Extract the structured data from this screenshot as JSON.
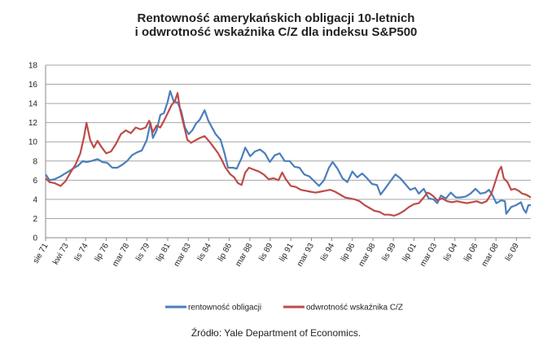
{
  "chart_data": {
    "type": "line",
    "title": [
      "Rentowność amerykańskich obligacji 10-letnich",
      "i odwrotność wskaźnika C/Z dla indeksu S&P500"
    ],
    "source": "Źródło: Yale Department of Economics.",
    "ylim": [
      0,
      18
    ],
    "yticks": [
      0,
      2,
      4,
      6,
      8,
      10,
      12,
      14,
      16,
      18
    ],
    "grid": true,
    "legend_position": "bottom",
    "x_range": [
      1971.58,
      2011.0
    ],
    "xtick_labels": [
      {
        "label": "sie 71",
        "x": 1971.58
      },
      {
        "label": "kwi 73",
        "x": 1973.25
      },
      {
        "label": "lis 74",
        "x": 1974.83
      },
      {
        "label": "lip 76",
        "x": 1976.5
      },
      {
        "label": "mar 78",
        "x": 1978.17
      },
      {
        "label": "lis 79",
        "x": 1979.83
      },
      {
        "label": "lip 81",
        "x": 1981.5
      },
      {
        "label": "mar 83",
        "x": 1983.17
      },
      {
        "label": "lis 84",
        "x": 1984.83
      },
      {
        "label": "lip 86",
        "x": 1986.5
      },
      {
        "label": "mar 88",
        "x": 1988.17
      },
      {
        "label": "lis 89",
        "x": 1989.83
      },
      {
        "label": "lip 91",
        "x": 1991.5
      },
      {
        "label": "mar 93",
        "x": 1993.17
      },
      {
        "label": "lis 94",
        "x": 1994.83
      },
      {
        "label": "lip 96",
        "x": 1996.5
      },
      {
        "label": "mar 98",
        "x": 1998.17
      },
      {
        "label": "lis 99",
        "x": 1999.83
      },
      {
        "label": "lip 01",
        "x": 2001.5
      },
      {
        "label": "mar 03",
        "x": 2003.17
      },
      {
        "label": "lis 04",
        "x": 2004.83
      },
      {
        "label": "lip 06",
        "x": 2006.5
      },
      {
        "label": "mar 08",
        "x": 2008.17
      },
      {
        "label": "lis 09",
        "x": 2009.83
      }
    ],
    "series": [
      {
        "name": "rentowność obligacji",
        "color": "#4a7ebb",
        "points": [
          [
            1971.58,
            6.6
          ],
          [
            1971.9,
            6.0
          ],
          [
            1972.3,
            6.1
          ],
          [
            1972.8,
            6.4
          ],
          [
            1973.3,
            6.8
          ],
          [
            1973.8,
            7.2
          ],
          [
            1974.2,
            7.5
          ],
          [
            1974.6,
            8.0
          ],
          [
            1974.9,
            7.9
          ],
          [
            1975.3,
            8.0
          ],
          [
            1975.8,
            8.2
          ],
          [
            1976.2,
            7.9
          ],
          [
            1976.6,
            7.8
          ],
          [
            1977.0,
            7.3
          ],
          [
            1977.4,
            7.3
          ],
          [
            1977.8,
            7.6
          ],
          [
            1978.2,
            8.0
          ],
          [
            1978.6,
            8.6
          ],
          [
            1979.0,
            8.9
          ],
          [
            1979.4,
            9.1
          ],
          [
            1979.8,
            10.2
          ],
          [
            1980.1,
            12.0
          ],
          [
            1980.3,
            10.4
          ],
          [
            1980.6,
            11.2
          ],
          [
            1980.9,
            12.8
          ],
          [
            1981.2,
            13.0
          ],
          [
            1981.5,
            14.2
          ],
          [
            1981.7,
            15.3
          ],
          [
            1982.0,
            14.2
          ],
          [
            1982.3,
            14.1
          ],
          [
            1982.6,
            13.2
          ],
          [
            1982.9,
            11.5
          ],
          [
            1983.2,
            10.8
          ],
          [
            1983.5,
            11.2
          ],
          [
            1983.8,
            11.9
          ],
          [
            1984.1,
            12.3
          ],
          [
            1984.5,
            13.3
          ],
          [
            1984.8,
            12.2
          ],
          [
            1985.1,
            11.5
          ],
          [
            1985.4,
            10.8
          ],
          [
            1985.8,
            10.2
          ],
          [
            1986.1,
            8.9
          ],
          [
            1986.4,
            7.3
          ],
          [
            1986.8,
            7.3
          ],
          [
            1987.1,
            7.2
          ],
          [
            1987.5,
            8.3
          ],
          [
            1987.8,
            9.4
          ],
          [
            1988.2,
            8.5
          ],
          [
            1988.6,
            9.0
          ],
          [
            1989.0,
            9.2
          ],
          [
            1989.4,
            8.8
          ],
          [
            1989.8,
            7.9
          ],
          [
            1990.2,
            8.6
          ],
          [
            1990.6,
            8.8
          ],
          [
            1991.0,
            8.0
          ],
          [
            1991.4,
            8.0
          ],
          [
            1991.8,
            7.4
          ],
          [
            1992.2,
            7.3
          ],
          [
            1992.6,
            6.6
          ],
          [
            1993.0,
            6.4
          ],
          [
            1993.4,
            5.9
          ],
          [
            1993.8,
            5.4
          ],
          [
            1994.2,
            6.0
          ],
          [
            1994.6,
            7.3
          ],
          [
            1994.9,
            7.9
          ],
          [
            1995.3,
            7.2
          ],
          [
            1995.7,
            6.2
          ],
          [
            1996.1,
            5.8
          ],
          [
            1996.5,
            6.9
          ],
          [
            1996.9,
            6.3
          ],
          [
            1997.3,
            6.7
          ],
          [
            1997.7,
            6.2
          ],
          [
            1998.1,
            5.6
          ],
          [
            1998.5,
            5.5
          ],
          [
            1998.8,
            4.5
          ],
          [
            1999.2,
            5.2
          ],
          [
            1999.6,
            5.9
          ],
          [
            2000.0,
            6.6
          ],
          [
            2000.4,
            6.2
          ],
          [
            2000.8,
            5.6
          ],
          [
            2001.2,
            5.0
          ],
          [
            2001.6,
            5.2
          ],
          [
            2001.9,
            4.6
          ],
          [
            2002.3,
            5.1
          ],
          [
            2002.7,
            4.1
          ],
          [
            2003.1,
            4.0
          ],
          [
            2003.4,
            3.6
          ],
          [
            2003.7,
            4.4
          ],
          [
            2004.1,
            4.1
          ],
          [
            2004.5,
            4.7
          ],
          [
            2004.9,
            4.2
          ],
          [
            2005.3,
            4.2
          ],
          [
            2005.7,
            4.3
          ],
          [
            2006.1,
            4.6
          ],
          [
            2006.5,
            5.1
          ],
          [
            2006.9,
            4.6
          ],
          [
            2007.3,
            4.7
          ],
          [
            2007.6,
            5.0
          ],
          [
            2007.9,
            4.4
          ],
          [
            2008.2,
            3.6
          ],
          [
            2008.6,
            3.9
          ],
          [
            2008.9,
            3.8
          ],
          [
            2009.0,
            2.5
          ],
          [
            2009.4,
            3.2
          ],
          [
            2009.8,
            3.4
          ],
          [
            2010.2,
            3.7
          ],
          [
            2010.4,
            3.0
          ],
          [
            2010.6,
            2.6
          ],
          [
            2010.8,
            3.4
          ],
          [
            2011.0,
            3.4
          ]
        ]
      },
      {
        "name": "odwrotność wskaźnika C/Z",
        "color": "#be4b48",
        "points": [
          [
            1971.58,
            6.2
          ],
          [
            1971.9,
            5.8
          ],
          [
            1972.3,
            5.7
          ],
          [
            1972.8,
            5.4
          ],
          [
            1973.2,
            5.9
          ],
          [
            1973.6,
            6.8
          ],
          [
            1974.0,
            7.6
          ],
          [
            1974.4,
            8.8
          ],
          [
            1974.7,
            10.5
          ],
          [
            1974.9,
            12.0
          ],
          [
            1975.2,
            10.2
          ],
          [
            1975.5,
            9.4
          ],
          [
            1975.8,
            10.1
          ],
          [
            1976.1,
            9.5
          ],
          [
            1976.5,
            8.8
          ],
          [
            1976.9,
            9.0
          ],
          [
            1977.3,
            9.8
          ],
          [
            1977.7,
            10.8
          ],
          [
            1978.1,
            11.2
          ],
          [
            1978.5,
            10.9
          ],
          [
            1978.9,
            11.5
          ],
          [
            1979.3,
            11.3
          ],
          [
            1979.7,
            11.5
          ],
          [
            1980.0,
            12.2
          ],
          [
            1980.3,
            11.0
          ],
          [
            1980.6,
            11.7
          ],
          [
            1980.9,
            11.5
          ],
          [
            1981.2,
            12.2
          ],
          [
            1981.5,
            13.0
          ],
          [
            1981.8,
            13.8
          ],
          [
            1982.1,
            14.3
          ],
          [
            1982.3,
            15.1
          ],
          [
            1982.5,
            13.4
          ],
          [
            1982.8,
            11.8
          ],
          [
            1983.1,
            10.2
          ],
          [
            1983.4,
            9.9
          ],
          [
            1983.8,
            10.2
          ],
          [
            1984.1,
            10.4
          ],
          [
            1984.5,
            10.6
          ],
          [
            1984.9,
            10.0
          ],
          [
            1985.2,
            9.5
          ],
          [
            1985.6,
            8.8
          ],
          [
            1985.9,
            8.1
          ],
          [
            1986.2,
            7.3
          ],
          [
            1986.6,
            6.6
          ],
          [
            1986.9,
            6.3
          ],
          [
            1987.2,
            5.7
          ],
          [
            1987.5,
            5.5
          ],
          [
            1987.8,
            6.8
          ],
          [
            1988.1,
            7.3
          ],
          [
            1988.5,
            7.1
          ],
          [
            1988.9,
            6.9
          ],
          [
            1989.3,
            6.6
          ],
          [
            1989.7,
            6.1
          ],
          [
            1990.1,
            6.2
          ],
          [
            1990.5,
            6.0
          ],
          [
            1990.8,
            6.8
          ],
          [
            1991.1,
            6.1
          ],
          [
            1991.5,
            5.4
          ],
          [
            1991.9,
            5.3
          ],
          [
            1992.3,
            5.0
          ],
          [
            1992.7,
            4.9
          ],
          [
            1993.1,
            4.8
          ],
          [
            1993.5,
            4.7
          ],
          [
            1993.9,
            4.8
          ],
          [
            1994.3,
            4.9
          ],
          [
            1994.7,
            5.0
          ],
          [
            1995.1,
            4.8
          ],
          [
            1995.5,
            4.5
          ],
          [
            1995.9,
            4.2
          ],
          [
            1996.3,
            4.1
          ],
          [
            1996.7,
            4.0
          ],
          [
            1997.1,
            3.8
          ],
          [
            1997.5,
            3.4
          ],
          [
            1997.9,
            3.1
          ],
          [
            1998.3,
            2.8
          ],
          [
            1998.7,
            2.7
          ],
          [
            1999.1,
            2.4
          ],
          [
            1999.5,
            2.4
          ],
          [
            1999.9,
            2.3
          ],
          [
            2000.3,
            2.5
          ],
          [
            2000.7,
            2.8
          ],
          [
            2001.1,
            3.2
          ],
          [
            2001.5,
            3.5
          ],
          [
            2001.9,
            3.6
          ],
          [
            2002.3,
            4.2
          ],
          [
            2002.6,
            4.7
          ],
          [
            2002.8,
            4.6
          ],
          [
            2003.1,
            4.3
          ],
          [
            2003.4,
            3.9
          ],
          [
            2003.8,
            4.1
          ],
          [
            2004.2,
            3.8
          ],
          [
            2004.6,
            3.7
          ],
          [
            2005.0,
            3.8
          ],
          [
            2005.4,
            3.7
          ],
          [
            2005.8,
            3.6
          ],
          [
            2006.2,
            3.7
          ],
          [
            2006.6,
            3.8
          ],
          [
            2007.0,
            3.6
          ],
          [
            2007.4,
            3.8
          ],
          [
            2007.8,
            4.6
          ],
          [
            2008.1,
            5.8
          ],
          [
            2008.4,
            7.0
          ],
          [
            2008.6,
            7.4
          ],
          [
            2008.8,
            6.2
          ],
          [
            2009.1,
            5.8
          ],
          [
            2009.4,
            5.0
          ],
          [
            2009.7,
            5.1
          ],
          [
            2010.0,
            4.9
          ],
          [
            2010.3,
            4.6
          ],
          [
            2010.6,
            4.5
          ],
          [
            2011.0,
            4.2
          ]
        ]
      }
    ]
  }
}
